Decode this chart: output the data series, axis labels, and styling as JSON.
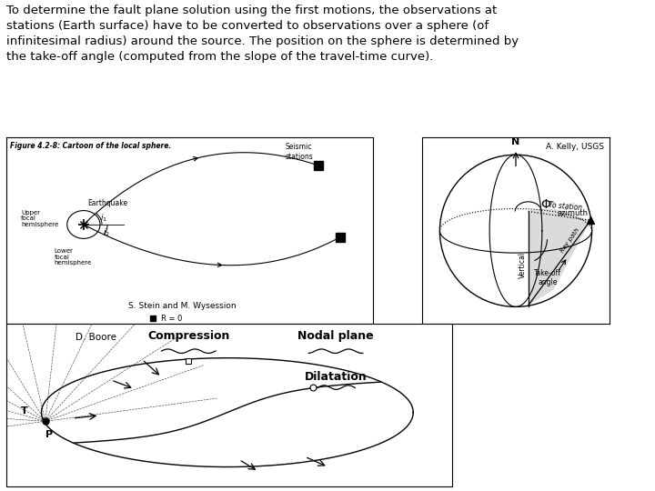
{
  "title_text": "To determine the fault plane solution using the first motions, the observations at\nstations (Earth surface) have to be converted to observations over a sphere (of\ninfinitesimal radius) around the source. The position on the sphere is determined by\nthe take-off angle (computed from the slope of the travel-time curve).",
  "title_fontsize": 9.5,
  "bg_color": "#ffffff",
  "panel1_label": "Figure 4.2-8: Cartoon of the local sphere.",
  "panel1_credit": "S. Stein and M. Wysession",
  "panel1_credit2": "R = 0",
  "panel2_credit": "A. Kelly, USGS",
  "panel3_credit": "D. Boore",
  "panel3_label1": "Compression",
  "panel3_label2": "Nodal plane",
  "panel3_label3": "Dilatation"
}
